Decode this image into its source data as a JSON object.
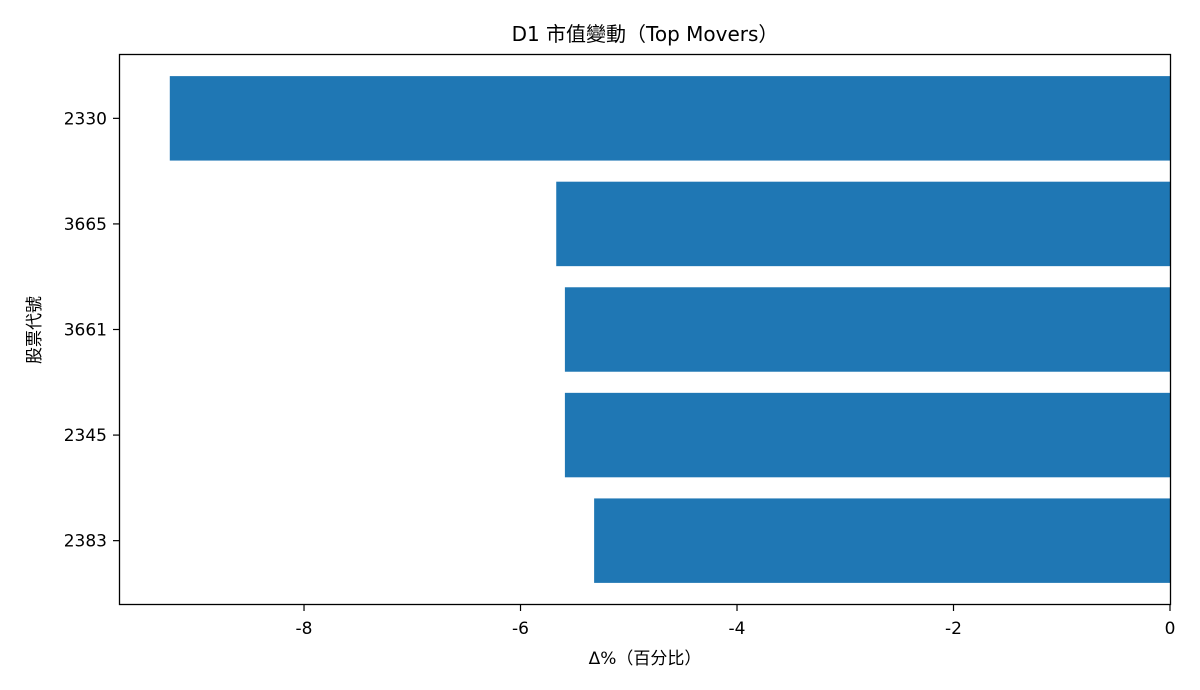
{
  "chart_data": {
    "type": "bar",
    "orientation": "horizontal",
    "title": "D1 市值變動（Top Movers）",
    "xlabel": "Δ%（百分比）",
    "ylabel": "股票代號",
    "categories": [
      "2330",
      "3665",
      "3661",
      "2345",
      "2383"
    ],
    "values": [
      -9.24,
      -5.67,
      -5.59,
      -5.59,
      -5.32
    ],
    "xlim": [
      -9.7,
      0
    ],
    "xticks": [
      -8,
      -6,
      -4,
      -2,
      0
    ],
    "xtick_labels": [
      "-8",
      "-6",
      "-4",
      "-2",
      "0"
    ],
    "bar_color": "#1f77b4",
    "grid": false,
    "legend": "none"
  }
}
